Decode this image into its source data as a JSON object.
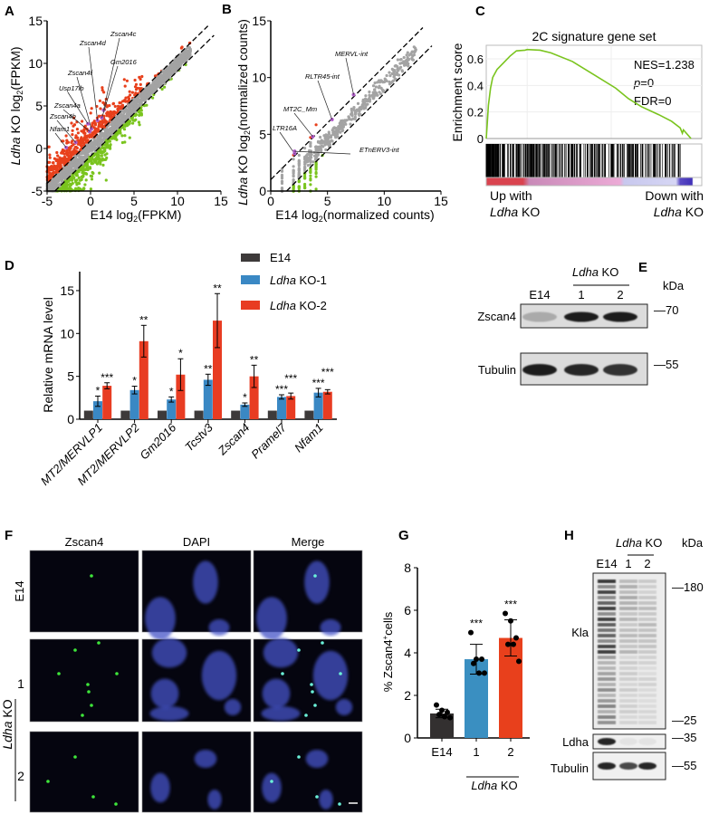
{
  "panel_labels": {
    "A": "A",
    "B": "B",
    "C": "C",
    "D": "D",
    "E": "E",
    "F": "F",
    "G": "G",
    "H": "H"
  },
  "chart_data": [
    {
      "panel": "A",
      "type": "scatter",
      "xlabel": {
        "text": "E14 log",
        "sub": "2",
        "tail": "(FPKM)"
      },
      "ylabel": {
        "italic": "Ldha",
        "text": " KO log",
        "sub": "2",
        "tail": "(FPKM)"
      },
      "xlim": [
        -5,
        15
      ],
      "ylim": [
        -5,
        15
      ],
      "xticks": [
        "-5",
        "0",
        "5",
        "10",
        "15"
      ],
      "yticks": [
        "-5",
        "0",
        "5",
        "10",
        "15"
      ],
      "colors": {
        "up": "#e8401c",
        "down": "#7ac41e",
        "unchanged": "#a3a3a3",
        "highlight": "#b05cc8"
      },
      "fold_lines": "dashed",
      "annotations": [
        {
          "label": "Zscan4c",
          "x": 1.5,
          "y": 4.5
        },
        {
          "label": "Zscan4d",
          "x": 0.8,
          "y": 3.3
        },
        {
          "label": "Gm2016",
          "x": 1.3,
          "y": 3.6
        },
        {
          "label": "Zscan4f",
          "x": 0.1,
          "y": 2.3
        },
        {
          "label": "Usp17lb",
          "x": -0.3,
          "y": 2.9
        },
        {
          "label": "Zscan4a",
          "x": -0.1,
          "y": 2.0
        },
        {
          "label": "Zscan4b",
          "x": -1.7,
          "y": 0.7
        },
        {
          "label": "Nfam1",
          "x": -2.8,
          "y": 0.1
        }
      ]
    },
    {
      "panel": "B",
      "type": "scatter",
      "xlabel": {
        "text": "E14 log",
        "sub": "2",
        "tail": "(normalized counts)"
      },
      "ylabel": {
        "italic": "Ldha",
        "text": " KO log",
        "sub": "2",
        "tail": "(normalized counts)"
      },
      "xlim": [
        0,
        15
      ],
      "ylim": [
        0,
        15
      ],
      "xticks": [
        "0",
        "5",
        "10",
        "15"
      ],
      "yticks": [
        "0",
        "5",
        "10",
        "15"
      ],
      "colors": {
        "up": "#e8401c",
        "down": "#7ac41e",
        "unchanged": "#a3a3a3",
        "highlight": "#b05cc8"
      },
      "fold_lines": "dashed",
      "annotations": [
        {
          "label": "MERVL-int",
          "x": 7.3,
          "y": 8.5
        },
        {
          "label": "RLTR45-int",
          "x": 5.4,
          "y": 6.3
        },
        {
          "label": "MT2C_Mm",
          "x": 3.7,
          "y": 4.8
        },
        {
          "label": "LTR16A",
          "x": 2.1,
          "y": 3.3
        },
        {
          "label": "ETnERV3-int",
          "x": 2.1,
          "y": 3.5
        }
      ]
    },
    {
      "panel": "C",
      "type": "line",
      "title": "2C signature gene set",
      "ylabel": "Enrichment score",
      "yticks": [
        "0",
        "0.2",
        "0.4",
        "0.6"
      ],
      "ylim": [
        0,
        0.7
      ],
      "color": "#7ac41e",
      "running_es": [
        [
          0,
          0
        ],
        [
          0.005,
          0.12
        ],
        [
          0.01,
          0.25
        ],
        [
          0.02,
          0.38
        ],
        [
          0.03,
          0.46
        ],
        [
          0.05,
          0.52
        ],
        [
          0.08,
          0.57
        ],
        [
          0.11,
          0.62
        ],
        [
          0.14,
          0.66
        ],
        [
          0.18,
          0.665
        ],
        [
          0.19,
          0.67
        ],
        [
          0.25,
          0.665
        ],
        [
          0.3,
          0.645
        ],
        [
          0.4,
          0.58
        ],
        [
          0.5,
          0.48
        ],
        [
          0.6,
          0.38
        ],
        [
          0.66,
          0.3
        ],
        [
          0.72,
          0.24
        ],
        [
          0.8,
          0.18
        ],
        [
          0.86,
          0.13
        ],
        [
          0.9,
          0.08
        ],
        [
          0.91,
          0.04
        ],
        [
          0.915,
          0.065
        ],
        [
          0.95,
          0.0
        ]
      ],
      "stats": {
        "nes": "NES=1.238",
        "p_italic": "p",
        "p_rest": "=0",
        "fdr": "FDR=0"
      },
      "left_label": {
        "line1": "Up with",
        "italic": "Ldha",
        "rest": " KO"
      },
      "right_label": {
        "line1": "Down with",
        "italic": "Ldha",
        "rest": " KO"
      }
    },
    {
      "panel": "D",
      "type": "bar",
      "ylabel": "Relative mRNA level",
      "ylim": [
        0,
        19
      ],
      "yticks": [
        0,
        5,
        10,
        15
      ],
      "categories": [
        "MT2/MERVLP1",
        "MT2/MERVLP2",
        "Gm2016",
        "Tcstv3",
        "Zscan4",
        "Pramel7",
        "Nfam1"
      ],
      "series": [
        {
          "name": "E14",
          "name_italic": "",
          "color": "#3d3a3a",
          "values": [
            1,
            1,
            1,
            1,
            1,
            1,
            1
          ],
          "errors": [
            0,
            0,
            0,
            0,
            0,
            0,
            0
          ],
          "sig": [
            "",
            "",
            "",
            "",
            "",
            "",
            ""
          ]
        },
        {
          "name": " KO-1",
          "name_italic": "Ldha",
          "color": "#3a88c4",
          "values": [
            2.1,
            3.4,
            2.3,
            4.6,
            1.7,
            2.6,
            3.1
          ],
          "errors": [
            0.6,
            0.45,
            0.3,
            0.65,
            0.2,
            0.25,
            0.5
          ],
          "sig": [
            "*",
            "*",
            "*",
            "**",
            "*",
            "***",
            "***"
          ]
        },
        {
          "name": " KO-2",
          "name_italic": "Ldha",
          "color": "#e83c22",
          "values": [
            3.9,
            9.1,
            5.2,
            11.5,
            5.0,
            2.7,
            3.2
          ],
          "errors": [
            0.35,
            1.85,
            1.85,
            3.15,
            1.3,
            0.35,
            0.25
          ],
          "sig": [
            "***",
            "**",
            "*",
            "**",
            "**",
            "***",
            "***"
          ]
        }
      ],
      "legend": "top-right"
    },
    {
      "panel": "G",
      "type": "bar",
      "ylabel": {
        "text": "% Zscan4",
        "sup": "+",
        "tail": "cells"
      },
      "ylim": [
        0,
        8
      ],
      "yticks": [
        "0",
        "2",
        "4",
        "6",
        "8"
      ],
      "categories": [
        "E14",
        "1",
        "2"
      ],
      "group_label": {
        "italic": "Ldha",
        "rest": " KO"
      },
      "values": [
        1.15,
        3.7,
        4.7
      ],
      "errors": [
        0.2,
        0.7,
        0.85
      ],
      "sig": [
        "",
        "***",
        "***"
      ],
      "colors": [
        "#333030",
        "#3a8fc1",
        "#e8401c"
      ],
      "points": [
        [
          1.55,
          1.3,
          1.2,
          1.1,
          1.0,
          0.95
        ],
        [
          4.95,
          3.7,
          3.7,
          3.5,
          3.05,
          3.05
        ],
        [
          5.85,
          5.5,
          4.7,
          4.4,
          4.4,
          3.6
        ]
      ]
    }
  ],
  "blot_E": {
    "lanes": [
      "E14",
      "1",
      "2"
    ],
    "group": {
      "italic": "Ldha",
      "rest": " KO"
    },
    "kda": "kDa",
    "rows": [
      {
        "label": "Zscan4",
        "marker": "—70",
        "intensity": [
          0.25,
          0.95,
          0.95
        ]
      },
      {
        "label": "Tubulin",
        "marker": "—55",
        "intensity": [
          0.95,
          0.9,
          0.85
        ]
      }
    ]
  },
  "blot_H": {
    "lanes": [
      "E14",
      "1",
      "2"
    ],
    "group": {
      "italic": "Ldha",
      "rest": " KO"
    },
    "kda": "kDa",
    "rows": [
      {
        "label": "Kla",
        "markers": [
          "—180",
          "—25"
        ]
      },
      {
        "label": "Ldha",
        "markers": [
          "—35"
        ],
        "intensity": [
          0.9,
          0.05,
          0.05
        ]
      },
      {
        "label": "Tubulin",
        "markers": [
          "—55"
        ],
        "intensity": [
          0.9,
          0.75,
          0.9
        ]
      }
    ]
  },
  "microscopy_F": {
    "columns": [
      "Zscan4",
      "DAPI",
      "Merge"
    ],
    "rows": [
      "E14",
      "1",
      "2"
    ],
    "group": {
      "italic": "Ldha",
      "rest": " KO"
    },
    "channel_colors": {
      "zscan4": "#3ee63a",
      "dapi": "#4452c8"
    }
  }
}
